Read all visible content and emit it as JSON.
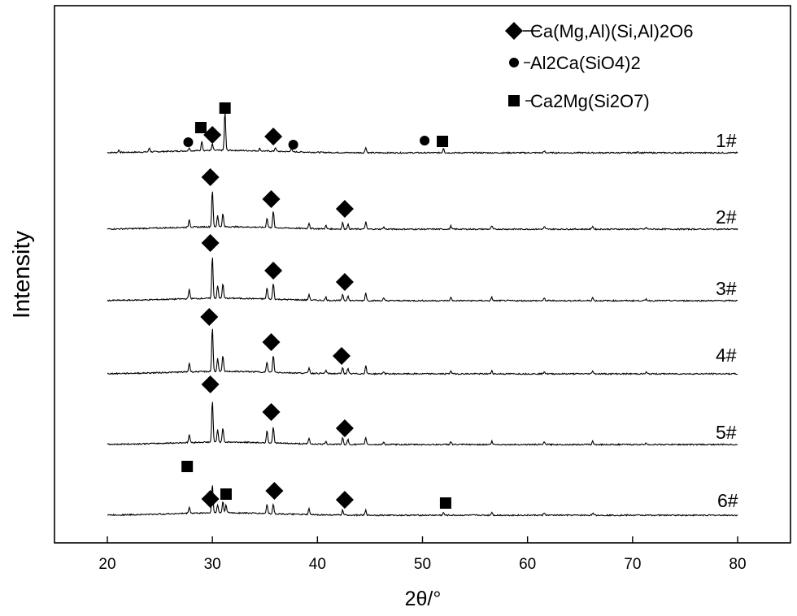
{
  "chart_data": {
    "type": "line",
    "xlabel": "2θ/°",
    "ylabel": "Intensity",
    "xlim": [
      15,
      81
    ],
    "x_ticks": [
      20,
      30,
      40,
      50,
      60,
      70,
      80
    ],
    "legend": {
      "placement": "top-right",
      "entries": [
        {
          "marker": "diamond",
          "label": "Ca(Mg,Al)(Si,Al)2O6"
        },
        {
          "marker": "circle",
          "label": "Al2Ca(SiO4)2"
        },
        {
          "marker": "square",
          "label": "Ca2Mg(Si2O7)"
        }
      ]
    },
    "series": [
      {
        "name": "1#",
        "peaks": [
          [
            21.1,
            3
          ],
          [
            24.0,
            5
          ],
          [
            27.8,
            4
          ],
          [
            29.0,
            12
          ],
          [
            30.0,
            8
          ],
          [
            31.2,
            48
          ],
          [
            34.5,
            3
          ],
          [
            36.0,
            5
          ],
          [
            37.5,
            4
          ],
          [
            44.6,
            7
          ],
          [
            52.0,
            6
          ],
          [
            61.6,
            2
          ],
          [
            70.5,
            2
          ]
        ],
        "markers": [
          {
            "type": "circle",
            "x": 27.7
          },
          {
            "type": "square",
            "x": 28.9
          },
          {
            "type": "diamond",
            "x": 30.0
          },
          {
            "type": "square",
            "x": 31.2
          },
          {
            "type": "diamond",
            "x": 35.8
          },
          {
            "type": "circle",
            "x": 37.7
          },
          {
            "type": "circle",
            "x": 50.2
          },
          {
            "type": "square",
            "x": 51.9
          }
        ]
      },
      {
        "name": "2#",
        "peaks": [
          [
            27.8,
            10
          ],
          [
            30.0,
            46
          ],
          [
            30.5,
            14
          ],
          [
            31.0,
            16
          ],
          [
            35.2,
            12
          ],
          [
            35.8,
            20
          ],
          [
            39.2,
            7
          ],
          [
            40.8,
            4
          ],
          [
            42.4,
            8
          ],
          [
            42.9,
            6
          ],
          [
            44.6,
            9
          ],
          [
            46.3,
            3
          ],
          [
            52.7,
            4
          ],
          [
            56.6,
            4
          ],
          [
            61.6,
            3
          ],
          [
            66.2,
            4
          ],
          [
            71.3,
            2
          ]
        ],
        "markers": [
          {
            "type": "diamond",
            "x": 29.8
          },
          {
            "type": "diamond",
            "x": 35.6
          },
          {
            "type": "diamond",
            "x": 42.6
          }
        ]
      },
      {
        "name": "3#",
        "peaks": [
          [
            27.8,
            12
          ],
          [
            30.0,
            52
          ],
          [
            30.5,
            16
          ],
          [
            31.0,
            18
          ],
          [
            35.2,
            14
          ],
          [
            35.8,
            20
          ],
          [
            39.2,
            7
          ],
          [
            40.8,
            4
          ],
          [
            42.4,
            8
          ],
          [
            42.9,
            6
          ],
          [
            44.6,
            10
          ],
          [
            46.3,
            3
          ],
          [
            52.7,
            4
          ],
          [
            56.6,
            4
          ],
          [
            61.6,
            3
          ],
          [
            66.2,
            4
          ],
          [
            71.3,
            2
          ]
        ],
        "markers": [
          {
            "type": "diamond",
            "x": 29.8
          },
          {
            "type": "diamond",
            "x": 35.8
          },
          {
            "type": "diamond",
            "x": 42.6
          }
        ]
      },
      {
        "name": "4#",
        "peaks": [
          [
            27.8,
            11
          ],
          [
            30.0,
            55
          ],
          [
            30.5,
            16
          ],
          [
            31.0,
            19
          ],
          [
            35.2,
            13
          ],
          [
            35.8,
            21
          ],
          [
            39.2,
            7
          ],
          [
            40.8,
            4
          ],
          [
            42.4,
            8
          ],
          [
            42.9,
            6
          ],
          [
            44.6,
            10
          ],
          [
            46.3,
            3
          ],
          [
            52.7,
            4
          ],
          [
            56.6,
            4
          ],
          [
            61.6,
            3
          ],
          [
            66.2,
            4
          ],
          [
            71.3,
            2
          ]
        ],
        "markers": [
          {
            "type": "diamond",
            "x": 29.7
          },
          {
            "type": "diamond",
            "x": 35.6
          },
          {
            "type": "diamond",
            "x": 42.3
          }
        ]
      },
      {
        "name": "5#",
        "peaks": [
          [
            27.8,
            10
          ],
          [
            30.0,
            52
          ],
          [
            30.5,
            16
          ],
          [
            31.0,
            18
          ],
          [
            35.2,
            16
          ],
          [
            35.8,
            20
          ],
          [
            39.2,
            7
          ],
          [
            40.8,
            4
          ],
          [
            42.4,
            8
          ],
          [
            42.9,
            6
          ],
          [
            44.6,
            9
          ],
          [
            46.3,
            3
          ],
          [
            52.7,
            4
          ],
          [
            56.6,
            4
          ],
          [
            61.6,
            3
          ],
          [
            66.2,
            4
          ],
          [
            71.3,
            2
          ]
        ],
        "markers": [
          {
            "type": "diamond",
            "x": 29.8
          },
          {
            "type": "diamond",
            "x": 35.6
          },
          {
            "type": "diamond",
            "x": 42.6
          }
        ]
      },
      {
        "name": "6#",
        "peaks": [
          [
            27.8,
            8
          ],
          [
            30.0,
            36
          ],
          [
            30.5,
            10
          ],
          [
            31.0,
            14
          ],
          [
            31.3,
            10
          ],
          [
            35.2,
            12
          ],
          [
            35.8,
            12
          ],
          [
            39.2,
            7
          ],
          [
            42.4,
            6
          ],
          [
            44.6,
            6
          ],
          [
            52.0,
            3
          ],
          [
            56.6,
            4
          ],
          [
            61.6,
            3
          ],
          [
            66.2,
            3
          ]
        ],
        "markers": [
          {
            "type": "square",
            "x": 27.6
          },
          {
            "type": "diamond",
            "x": 29.8
          },
          {
            "type": "square",
            "x": 31.3
          },
          {
            "type": "diamond",
            "x": 35.9
          },
          {
            "type": "diamond",
            "x": 42.6
          },
          {
            "type": "square",
            "x": 52.2
          }
        ]
      }
    ]
  }
}
